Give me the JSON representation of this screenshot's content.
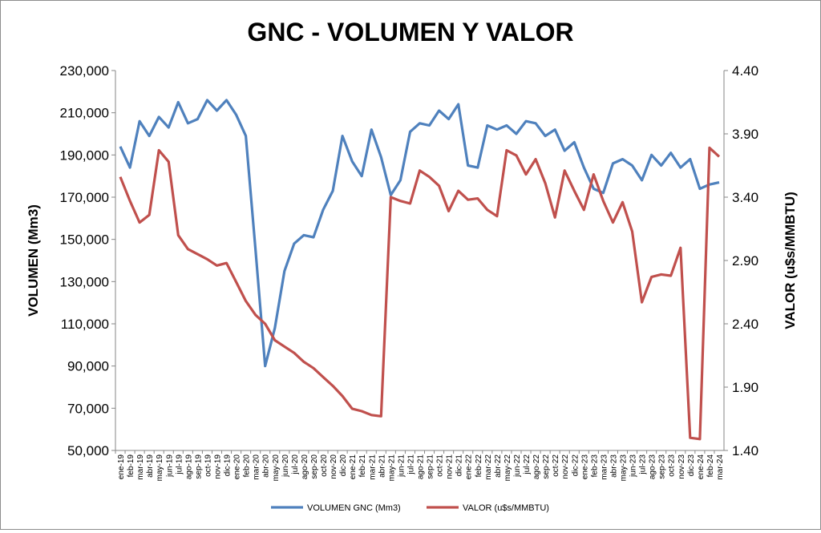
{
  "chart_data": {
    "type": "line",
    "title": "GNC - VOLUMEN Y VALOR",
    "ylabel_left": "VOLUMEN (Mm3)",
    "ylabel_right": "VALOR (u$s/MMBTU)",
    "ylim_left": [
      50000,
      230000
    ],
    "ylim_right": [
      1.4,
      4.4
    ],
    "yticks_left": [
      "50,000",
      "70,000",
      "90,000",
      "110,000",
      "130,000",
      "150,000",
      "170,000",
      "190,000",
      "210,000",
      "230,000"
    ],
    "yticks_right": [
      "1.40",
      "1.90",
      "2.40",
      "2.90",
      "3.40",
      "3.90",
      "4.40"
    ],
    "grid": false,
    "legend_position": "bottom",
    "categories": [
      "ene-19",
      "feb-19",
      "mar-19",
      "abr-19",
      "may-19",
      "jun-19",
      "jul-19",
      "ago-19",
      "sep-19",
      "oct-19",
      "nov-19",
      "dic-19",
      "ene-20",
      "feb-20",
      "mar-20",
      "abr-20",
      "may-20",
      "jun-20",
      "jul-20",
      "ago-20",
      "sep-20",
      "oct-20",
      "nov-20",
      "dic-20",
      "ene-21",
      "feb-21",
      "mar-21",
      "abr-21",
      "may-21",
      "jun-21",
      "jul-21",
      "ago-21",
      "sep-21",
      "oct-21",
      "nov-21",
      "dic-21",
      "ene-22",
      "feb-22",
      "mar-22",
      "abr-22",
      "may-22",
      "jun-22",
      "jul-22",
      "ago-22",
      "sep-22",
      "oct-22",
      "nov-22",
      "dic-22",
      "ene-23",
      "feb-23",
      "mar-23",
      "abr-23",
      "may-23",
      "jun-23",
      "jul-23",
      "ago-23",
      "sep-23",
      "oct-23",
      "nov-23",
      "dic-23",
      "ene-24",
      "feb-24",
      "mar-24"
    ],
    "series": [
      {
        "name": "VOLUMEN GNC (Mm3)",
        "axis": "left",
        "color": "#4f81bd",
        "values": [
          194000,
          184000,
          206000,
          199000,
          208000,
          203000,
          215000,
          205000,
          207000,
          216000,
          211000,
          216000,
          209000,
          199000,
          145000,
          90000,
          108000,
          135000,
          148000,
          152000,
          151000,
          164000,
          173000,
          199000,
          187000,
          180000,
          202000,
          189000,
          171000,
          178000,
          201000,
          205000,
          204000,
          211000,
          207000,
          214000,
          185000,
          184000,
          204000,
          202000,
          204000,
          200000,
          206000,
          205000,
          199000,
          202000,
          192000,
          196000,
          184000,
          174000,
          172000,
          186000,
          188000,
          185000,
          178000,
          190000,
          185000,
          191000,
          184000,
          188000,
          174000,
          176000,
          177000
        ]
      },
      {
        "name": "VALOR (u$s/MMBTU)",
        "axis": "right",
        "color": "#c0504d",
        "values": [
          3.56,
          3.37,
          3.2,
          3.26,
          3.77,
          3.68,
          3.1,
          2.99,
          2.95,
          2.91,
          2.86,
          2.88,
          2.73,
          2.58,
          2.47,
          2.4,
          2.27,
          2.22,
          2.17,
          2.1,
          2.05,
          1.98,
          1.91,
          1.83,
          1.73,
          1.71,
          1.68,
          1.67,
          3.4,
          3.37,
          3.35,
          3.61,
          3.56,
          3.49,
          3.29,
          3.45,
          3.38,
          3.39,
          3.3,
          3.25,
          3.77,
          3.73,
          3.58,
          3.7,
          3.51,
          3.24,
          3.61,
          3.45,
          3.3,
          3.58,
          3.37,
          3.2,
          3.36,
          3.13,
          2.57,
          2.77,
          2.79,
          2.78,
          3.0,
          1.5,
          1.49,
          3.79,
          3.72
        ]
      }
    ]
  }
}
